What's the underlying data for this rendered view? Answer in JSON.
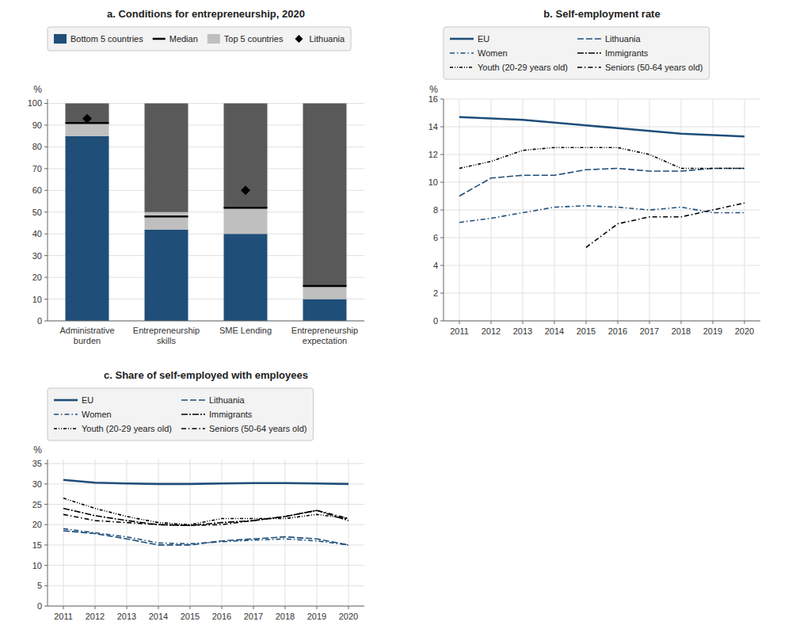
{
  "chart_data": [
    {
      "type": "bar",
      "title": "a. Conditions for entrepreneurship, 2020",
      "ylabel": "%",
      "categories": [
        "Administrative\nburden",
        "Entrepreneurship\nskills",
        "SME Lending",
        "Entrepreneurship\nexpectation"
      ],
      "stacked": true,
      "ylim": [
        0,
        102
      ],
      "yticks": [
        0,
        10,
        20,
        30,
        40,
        50,
        60,
        70,
        80,
        90,
        100
      ],
      "grid": "y",
      "legend": "top",
      "series": [
        {
          "name": "Bottom 5 countries",
          "type": "bar",
          "color": "#1F4E79",
          "values": [
            85,
            42,
            40,
            10
          ]
        },
        {
          "name": "Median",
          "type": "line",
          "marker": "hline",
          "color": "#000000",
          "values": [
            91,
            48,
            52,
            16
          ]
        },
        {
          "name": "Top 5 countries",
          "type": "bar",
          "color": "#BFBFBF",
          "values": [
            6,
            8,
            12,
            6
          ]
        },
        {
          "type": "bar",
          "color": "#595959",
          "values": [
            9,
            50,
            48,
            84
          ]
        },
        {
          "name": "Lithuania",
          "type": "scatter",
          "marker": "diamond",
          "color": "#000000",
          "values": [
            93,
            null,
            60,
            null
          ]
        }
      ]
    },
    {
      "type": "line",
      "title": "b. Self-employment rate",
      "ylabel": "%",
      "x": [
        2011,
        2012,
        2013,
        2014,
        2015,
        2016,
        2017,
        2018,
        2019,
        2020
      ],
      "xlim": [
        2010.5,
        2020.5
      ],
      "xticks": [
        2011,
        2012,
        2013,
        2014,
        2015,
        2016,
        2017,
        2018,
        2019,
        2020
      ],
      "ylim": [
        0,
        16
      ],
      "yticks": [
        0,
        2,
        4,
        6,
        8,
        10,
        12,
        14,
        16
      ],
      "grid": true,
      "legend": "top",
      "series": [
        {
          "name": "EU",
          "color": "#1F4E79",
          "line_style": "solid",
          "values": [
            14.7,
            14.6,
            14.5,
            14.3,
            14.1,
            13.9,
            13.7,
            13.5,
            13.4,
            13.3
          ]
        },
        {
          "name": "Lithuania",
          "color": "#1F4E79",
          "line_style": "dashed",
          "values": [
            9.0,
            10.3,
            10.5,
            10.5,
            10.9,
            11.0,
            10.8,
            10.8,
            11.0,
            11.0
          ]
        },
        {
          "name": "Women",
          "color": "#1F4E79",
          "line_style": "dashdot",
          "values": [
            7.1,
            7.4,
            7.8,
            8.2,
            8.3,
            8.2,
            8.0,
            8.2,
            7.8,
            7.8
          ]
        },
        {
          "name": "Immigrants",
          "color": "#000000",
          "line_style": "long-dash-dot",
          "values": [
            null,
            null,
            null,
            null,
            null,
            null,
            null,
            null,
            null,
            null
          ]
        },
        {
          "name": "Youth (20-29 years old)",
          "color": "#000000",
          "line_style": "dash-dot-dot",
          "values": [
            11.0,
            11.5,
            12.3,
            12.5,
            12.5,
            12.5,
            12.0,
            11.0,
            11.0,
            11.0
          ]
        },
        {
          "name": "Seniors (50-64 years old)",
          "color": "#000000",
          "line_style": "dashdot",
          "values": [
            null,
            null,
            null,
            null,
            5.3,
            7.0,
            7.5,
            7.5,
            8.0,
            8.5
          ]
        }
      ]
    },
    {
      "type": "line",
      "title": "c. Share of self-employed with employees",
      "ylabel": "%",
      "x": [
        2011,
        2012,
        2013,
        2014,
        2015,
        2016,
        2017,
        2018,
        2019,
        2020
      ],
      "xlim": [
        2010.5,
        2020.5
      ],
      "xticks": [
        2011,
        2012,
        2013,
        2014,
        2015,
        2016,
        2017,
        2018,
        2019,
        2020
      ],
      "ylim": [
        0,
        36
      ],
      "yticks": [
        0,
        5,
        10,
        15,
        20,
        25,
        30,
        35
      ],
      "grid": true,
      "legend": "top",
      "series": [
        {
          "name": "EU",
          "color": "#1F4E79",
          "line_style": "solid",
          "values": [
            31.0,
            30.3,
            30.1,
            30.0,
            30.0,
            30.1,
            30.2,
            30.2,
            30.1,
            30.0
          ]
        },
        {
          "name": "Lithuania",
          "color": "#1F4E79",
          "line_style": "dashed",
          "values": [
            18.5,
            17.8,
            16.5,
            15.0,
            15.0,
            16.0,
            16.5,
            17.0,
            16.5,
            15.0
          ]
        },
        {
          "name": "Women",
          "color": "#1F4E79",
          "line_style": "dashdot",
          "values": [
            19.0,
            18.0,
            17.0,
            15.5,
            15.3,
            15.8,
            16.2,
            16.5,
            16.0,
            15.0
          ]
        },
        {
          "name": "Immigrants",
          "color": "#000000",
          "line_style": "long-dash-dot",
          "values": [
            24.0,
            22.2,
            21.0,
            20.0,
            19.8,
            20.5,
            21.0,
            22.0,
            23.5,
            21.0
          ]
        },
        {
          "name": "Youth (20-29 years old)",
          "color": "#000000",
          "line_style": "dash-dot-dot",
          "values": [
            26.5,
            24.0,
            22.0,
            20.5,
            20.0,
            21.5,
            21.5,
            21.5,
            22.5,
            21.5
          ]
        },
        {
          "name": "Seniors (50-64 years old)",
          "color": "#000000",
          "line_style": "dashdot",
          "values": [
            22.5,
            21.0,
            20.5,
            20.0,
            19.8,
            20.0,
            21.0,
            22.0,
            23.5,
            21.5
          ]
        }
      ]
    }
  ]
}
